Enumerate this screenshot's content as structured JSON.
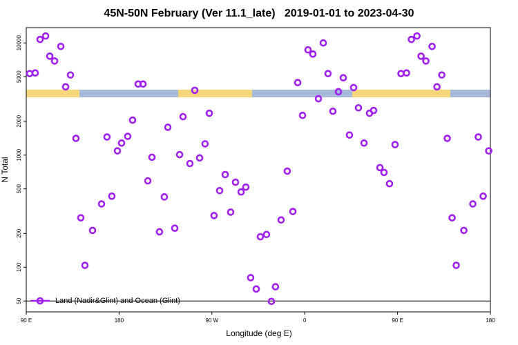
{
  "chart_data": {
    "type": "scatter",
    "title": "45N-50N February (Ver 11.1_late)   2019-01-01 to 2023-04-30",
    "x_label": "Longitude (deg E)",
    "y_label": "N Total",
    "xlim": [
      90,
      540
    ],
    "ylim": [
      40,
      13700
    ],
    "log_y": true,
    "xticks": [
      {
        "value": 90,
        "label": "90 E"
      },
      {
        "value": 180,
        "label": "180"
      },
      {
        "value": 270,
        "label": "90 W"
      },
      {
        "value": 360,
        "label": "0"
      },
      {
        "value": 450,
        "label": "90 E"
      },
      {
        "value": 540,
        "label": "180"
      }
    ],
    "yticks": [
      50,
      100,
      200,
      500,
      1000,
      2000,
      5000,
      10000
    ],
    "hline": 50,
    "legend": "bottom-left",
    "series": [
      {
        "name": "Land (Nadir&Glint) and Ocean (Glint)",
        "color": "#a020f0",
        "x": [
          93.3,
          98.7,
          103.4,
          108.8,
          112.8,
          117.5,
          123.5,
          128.2,
          132.9,
          138.2,
          142.9,
          146.9,
          154.3,
          163.0,
          168.3,
          173.0,
          178.4,
          182.4,
          188.4,
          193.1,
          198.5,
          203.2,
          207.9,
          211.9,
          219.2,
          223.9,
          227.3,
          234.0,
          238.7,
          242.0,
          248.7,
          253.4,
          258.1,
          263.4,
          267.5,
          272.1,
          277.5,
          282.9,
          288.2,
          292.9,
          298.3,
          302.9,
          307.6,
          313.0,
          317.0,
          323.0,
          327.7,
          331.7,
          337.1,
          343.1,
          348.5,
          353.2,
          357.9,
          363.2,
          367.9,
          373.3,
          378.0,
          382.6,
          387.3,
          392.7,
          397.4,
          403.4,
          407.4,
          412.1,
          417.5,
          422.8,
          426.8,
          432.9,
          436.9,
          442.2,
          447.6,
          453.3,
          458.7,
          463.4,
          468.8,
          472.8,
          477.5,
          483.5,
          488.2,
          492.9,
          498.2,
          502.9,
          506.9,
          514.3,
          523.0,
          528.3,
          533.0,
          538.4
        ],
        "values": [
          5330,
          5400,
          10740,
          11530,
          7620,
          6900,
          9310,
          4060,
          5180,
          1410,
          276,
          104,
          213,
          367,
          1450,
          430,
          1090,
          1280,
          1470,
          2050,
          4300,
          4300,
          589,
          957,
          207,
          424,
          1770,
          223,
          1010,
          2200,
          841,
          3780,
          944,
          1260,
          2360,
          289,
          482,
          670,
          310,
          573,
          469,
          518,
          80.7,
          64,
          187,
          196,
          49.6,
          67,
          264,
          719,
          314,
          4430,
          2260,
          8670,
          7960,
          3180,
          10000,
          5330,
          2460,
          3670,
          4890,
          1510,
          4000,
          2640,
          1280,
          2360,
          2500,
          773,
          700,
          556,
          1240,
          5330,
          5400,
          10740,
          11530,
          7620,
          6900,
          9310,
          4060,
          5180,
          1410,
          276,
          104,
          213,
          367,
          1450,
          430,
          1090
        ]
      }
    ]
  }
}
